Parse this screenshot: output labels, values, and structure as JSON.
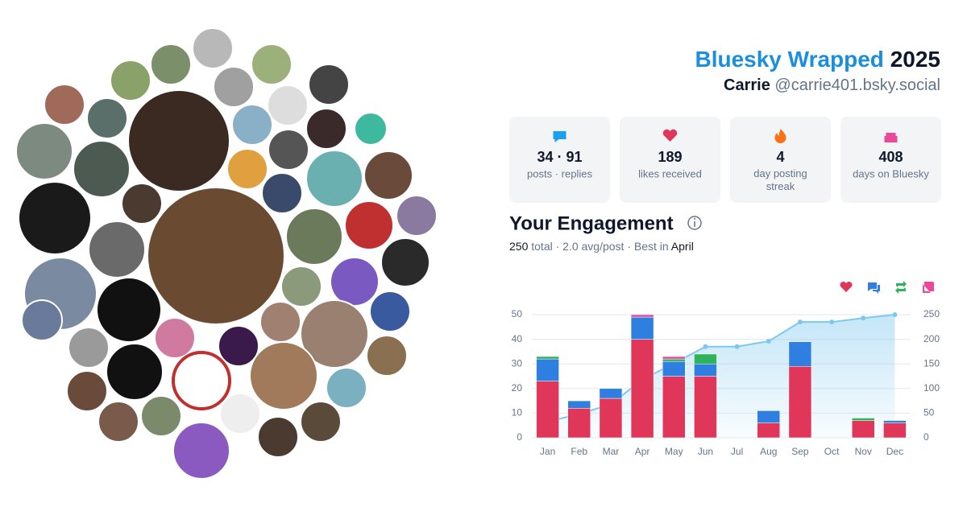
{
  "header": {
    "title": "Bluesky Wrapped",
    "year": "2025",
    "name": "Carrie",
    "handle": "@carrie401.bsky.social"
  },
  "stats": [
    {
      "value": "34 · 91",
      "label": "posts · replies"
    },
    {
      "value": 189,
      "label": "likes received"
    },
    {
      "value": 4,
      "label": "day posting streak"
    },
    {
      "value": 408,
      "label": "days on Bluesky"
    }
  ],
  "engagement": {
    "title": "Your Engagement",
    "total": 250,
    "text": "total · 2.0 avg/post · Best in",
    "best": "April"
  },
  "chart_data": {
    "type": "bar",
    "stacked": true,
    "grid": true,
    "categories": [
      "Jan",
      "Feb",
      "Mar",
      "Apr",
      "May",
      "Jun",
      "Jul",
      "Aug",
      "Sep",
      "Oct",
      "Nov",
      "Dec"
    ],
    "series": [
      {
        "color": "#e0365a",
        "values": [
          23,
          12,
          16,
          40,
          25,
          25,
          0,
          6,
          29,
          0,
          7,
          6
        ]
      },
      {
        "color": "#2f7fe0",
        "values": [
          9,
          3,
          4,
          9,
          6,
          5,
          0,
          5,
          10,
          0,
          0,
          1
        ]
      },
      {
        "color": "#2fb35a",
        "values": [
          1,
          0,
          0,
          0,
          1,
          4,
          0,
          0,
          0,
          0,
          1,
          0
        ]
      },
      {
        "color": "#ec4899",
        "values": [
          0,
          0,
          0,
          1,
          1,
          0,
          0,
          0,
          0,
          0,
          0,
          0
        ]
      },
      {
        "color": "#7cc8ef",
        "axis": "y2",
        "values": [
          33,
          48,
          68,
          118,
          151,
          185,
          185,
          196,
          235,
          235,
          243,
          250
        ]
      }
    ],
    "ylim": [
      0,
      50
    ],
    "yticks": [
      0,
      10,
      20,
      30,
      40,
      50
    ],
    "y2lim": [
      0,
      250
    ],
    "y2ticks": [
      0,
      50,
      100,
      150,
      200,
      250
    ]
  }
}
